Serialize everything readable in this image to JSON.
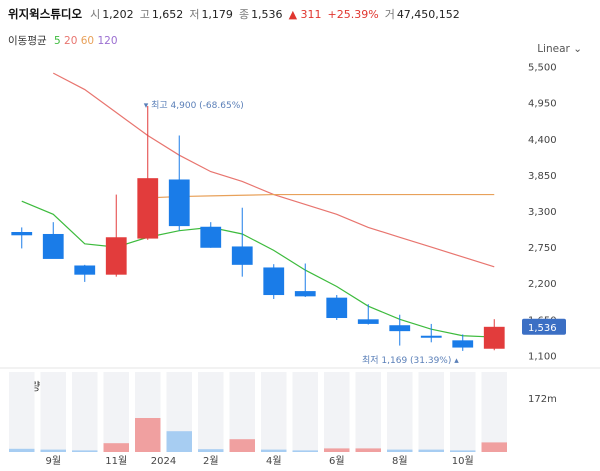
{
  "header": {
    "name": "위지윅스튜디오",
    "open_label": "시",
    "open": "1,202",
    "high_label": "고",
    "high": "1,652",
    "low_label": "저",
    "low": "1,179",
    "close_label": "종",
    "close": "1,536",
    "change": "▲ 311",
    "change_pct": "+25.39%",
    "volume_label": "거",
    "volume": "47,450,152"
  },
  "ma_legend": {
    "label": "이동평균",
    "periods": [
      "5",
      "20",
      "60",
      "120"
    ],
    "colors": [
      "#3dbb3d",
      "#e8756f",
      "#e8a15a",
      "#9b6fd1"
    ]
  },
  "scale_button": "Linear",
  "chart_data": {
    "type": "candlestick",
    "price_ticks": [
      "5,500",
      "4,950",
      "4,400",
      "3,850",
      "3,300",
      "2,750",
      "2,200",
      "1,650",
      "1,100"
    ],
    "price_tick_values": [
      5500,
      4950,
      4400,
      3850,
      3300,
      2750,
      2200,
      1650,
      1100
    ],
    "ylim": [
      1000,
      5600
    ],
    "x_labels": [
      "9월",
      "11월",
      "2024",
      "2월",
      "4월",
      "6월",
      "8월",
      "10월"
    ],
    "x_label_index": [
      1,
      3,
      4.5,
      6,
      8,
      10,
      12,
      14
    ],
    "candles": [
      {
        "o": 2980,
        "h": 3050,
        "l": 2730,
        "c": 2930
      },
      {
        "o": 2950,
        "h": 3130,
        "l": 2580,
        "c": 2570
      },
      {
        "o": 2470,
        "h": 2480,
        "l": 2220,
        "c": 2330
      },
      {
        "o": 2330,
        "h": 3550,
        "l": 2300,
        "c": 2900
      },
      {
        "o": 2880,
        "h": 4900,
        "l": 2860,
        "c": 3800
      },
      {
        "o": 3780,
        "h": 4450,
        "l": 3000,
        "c": 3070
      },
      {
        "o": 3060,
        "h": 3130,
        "l": 2740,
        "c": 2740
      },
      {
        "o": 2760,
        "h": 3350,
        "l": 2300,
        "c": 2480
      },
      {
        "o": 2440,
        "h": 2490,
        "l": 1960,
        "c": 2020
      },
      {
        "o": 2080,
        "h": 2500,
        "l": 1990,
        "c": 2000
      },
      {
        "o": 1980,
        "h": 2020,
        "l": 1640,
        "c": 1670
      },
      {
        "o": 1650,
        "h": 1880,
        "l": 1570,
        "c": 1580
      },
      {
        "o": 1560,
        "h": 1720,
        "l": 1250,
        "c": 1470
      },
      {
        "o": 1400,
        "h": 1580,
        "l": 1300,
        "c": 1380
      },
      {
        "o": 1330,
        "h": 1420,
        "l": 1169,
        "c": 1220
      },
      {
        "o": 1202,
        "h": 1652,
        "l": 1179,
        "c": 1536
      }
    ],
    "ma5": [
      3450,
      3250,
      2800,
      2750,
      2900,
      3000,
      3050,
      2950,
      2700,
      2400,
      2150,
      1850,
      1650,
      1500,
      1400,
      1380
    ],
    "ma20": [
      5400,
      5150,
      4800,
      4450,
      4150,
      3900,
      3750,
      3550,
      3400,
      3250,
      3050,
      2900,
      2750,
      2600,
      2450
    ],
    "ma60": [
      3500,
      3520,
      3530,
      3540,
      3550,
      3550,
      3550,
      3550,
      3550,
      3550,
      3550,
      3550
    ],
    "max_note": "최고 4,900 (-68.65%)",
    "min_note": "최저 1,169 (31.39%)",
    "last_price_label": "1,536",
    "volume_title": "거래량",
    "volume_tick": "172m",
    "volume_max": 200,
    "volumes": [
      {
        "v": 8,
        "up": false
      },
      {
        "v": 6,
        "up": false
      },
      {
        "v": 4,
        "up": false
      },
      {
        "v": 22,
        "up": true
      },
      {
        "v": 85,
        "up": true
      },
      {
        "v": 52,
        "up": false
      },
      {
        "v": 7,
        "up": false
      },
      {
        "v": 32,
        "up": true
      },
      {
        "v": 6,
        "up": false
      },
      {
        "v": 4,
        "up": false
      },
      {
        "v": 9,
        "up": true
      },
      {
        "v": 9,
        "up": true
      },
      {
        "v": 6,
        "up": false
      },
      {
        "v": 6,
        "up": false
      },
      {
        "v": 4,
        "up": false
      },
      {
        "v": 24,
        "up": true
      }
    ],
    "colors": {
      "up": "#e23c3c",
      "down": "#1a7ce8",
      "up_vol": "#f0a0a0",
      "down_vol": "#a7cdf2",
      "last_price_bg": "#3b6fc4"
    }
  }
}
